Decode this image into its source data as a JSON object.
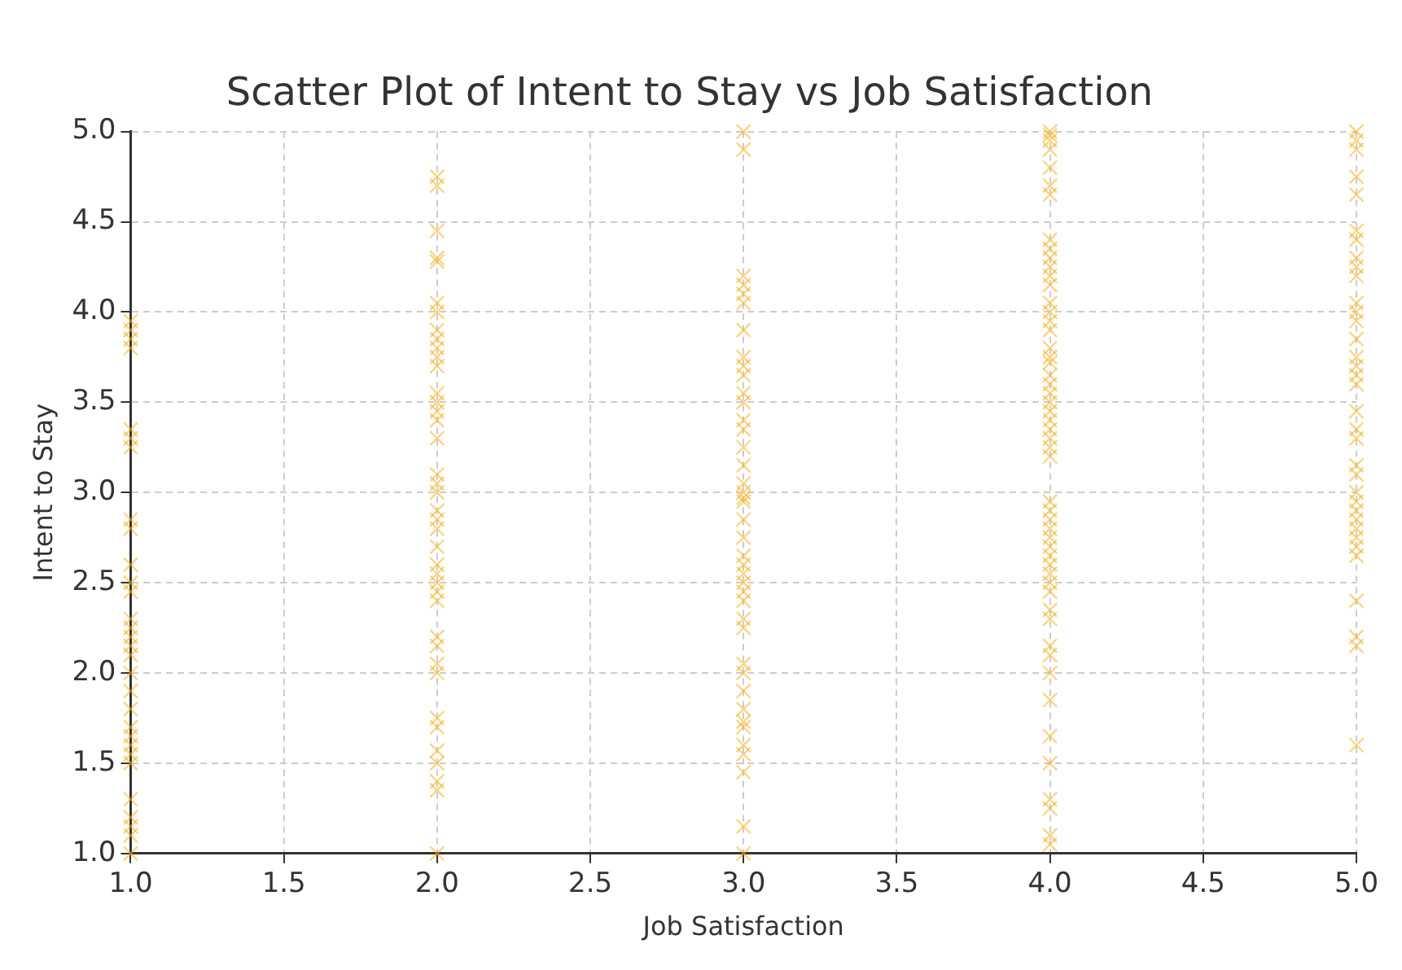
{
  "chart_data": {
    "type": "scatter",
    "title": "Scatter Plot of Intent to Stay vs Job Satisfaction",
    "xlabel": "Job Satisfaction",
    "ylabel": "Intent to Stay",
    "x": [
      1,
      1,
      1,
      1,
      1,
      1,
      1,
      1,
      1,
      1,
      1,
      1,
      1,
      1,
      1,
      1,
      1,
      1,
      1,
      1,
      1,
      1,
      1,
      1,
      1,
      1,
      1,
      1,
      1,
      1,
      2,
      2,
      2,
      2,
      2,
      2,
      2,
      2,
      2,
      2,
      2,
      2,
      2,
      2,
      2,
      2,
      2,
      2,
      2,
      2,
      2,
      2,
      2,
      2,
      2,
      2,
      2,
      2,
      2,
      2,
      2,
      2,
      2,
      2,
      2,
      2,
      2,
      2,
      2,
      2,
      3,
      3,
      3,
      3,
      3,
      3,
      3,
      3,
      3,
      3,
      3,
      3,
      3,
      3,
      3,
      3,
      3,
      3,
      3,
      3,
      3,
      3,
      3,
      3,
      3,
      3,
      3,
      3,
      3,
      3,
      3,
      3,
      3,
      3,
      3,
      3,
      3,
      3,
      3,
      3,
      3,
      4,
      4,
      4,
      4,
      4,
      4,
      4,
      4,
      4,
      4,
      4,
      4,
      4,
      4,
      4,
      4,
      4,
      4,
      4,
      4,
      4,
      4,
      4,
      4,
      4,
      4,
      4,
      4,
      4,
      4,
      4,
      4,
      4,
      4,
      4,
      4,
      4,
      4,
      4,
      4,
      4,
      4,
      4,
      4,
      4,
      4,
      4,
      4,
      4,
      4,
      4,
      4,
      4,
      5,
      5,
      5,
      5,
      5,
      5,
      5,
      5,
      5,
      5,
      5,
      5,
      5,
      5,
      5,
      5,
      5,
      5,
      5,
      5,
      5,
      5,
      5,
      5,
      5,
      5,
      5,
      5,
      5,
      5,
      5,
      5,
      5,
      5,
      5
    ],
    "values": [
      3.95,
      3.9,
      3.85,
      3.8,
      3.35,
      3.3,
      3.25,
      2.85,
      2.8,
      2.6,
      2.5,
      2.45,
      2.3,
      2.25,
      2.2,
      2.15,
      2.1,
      2.0,
      1.9,
      1.8,
      1.7,
      1.65,
      1.6,
      1.55,
      1.5,
      1.3,
      1.2,
      1.15,
      1.1,
      1.0,
      4.75,
      4.7,
      4.45,
      4.3,
      4.28,
      4.05,
      4.0,
      3.9,
      3.85,
      3.8,
      3.75,
      3.7,
      3.55,
      3.5,
      3.45,
      3.4,
      3.3,
      3.1,
      3.05,
      3.0,
      2.9,
      2.85,
      2.8,
      2.7,
      2.6,
      2.55,
      2.5,
      2.45,
      2.4,
      2.2,
      2.15,
      2.05,
      2.0,
      1.75,
      1.7,
      1.57,
      1.5,
      1.4,
      1.35,
      1.0,
      5.0,
      4.9,
      4.2,
      4.15,
      4.1,
      4.05,
      3.9,
      3.75,
      3.7,
      3.65,
      3.55,
      3.5,
      3.4,
      3.35,
      3.25,
      3.15,
      3.05,
      3.0,
      2.97,
      2.95,
      2.85,
      2.75,
      2.65,
      2.6,
      2.55,
      2.5,
      2.45,
      2.4,
      2.3,
      2.25,
      2.05,
      2.0,
      1.9,
      1.8,
      1.73,
      1.7,
      1.6,
      1.55,
      1.45,
      1.15,
      1.0,
      5.0,
      4.98,
      4.95,
      4.9,
      4.8,
      4.7,
      4.65,
      4.4,
      4.35,
      4.3,
      4.25,
      4.2,
      4.15,
      4.05,
      4.0,
      3.95,
      3.9,
      3.8,
      3.75,
      3.72,
      3.65,
      3.6,
      3.55,
      3.5,
      3.45,
      3.4,
      3.35,
      3.3,
      3.25,
      3.2,
      2.95,
      2.9,
      2.85,
      2.8,
      2.75,
      2.7,
      2.65,
      2.6,
      2.55,
      2.5,
      2.45,
      2.35,
      2.3,
      2.15,
      2.1,
      2.0,
      1.85,
      1.65,
      1.5,
      1.3,
      1.25,
      1.1,
      1.05,
      5.0,
      4.95,
      4.9,
      4.75,
      4.65,
      4.45,
      4.4,
      4.3,
      4.25,
      4.2,
      4.05,
      4.0,
      3.95,
      3.85,
      3.75,
      3.7,
      3.65,
      3.6,
      3.45,
      3.35,
      3.3,
      3.15,
      3.1,
      3.0,
      2.95,
      2.9,
      2.85,
      2.8,
      2.75,
      2.7,
      2.65,
      2.4,
      2.2,
      2.15,
      1.6
    ],
    "color": "#f5b324",
    "marker": "cross",
    "grid": true,
    "legend": false,
    "xlim": [
      1,
      5
    ],
    "xticks": [
      {
        "value": 1,
        "label": "1.0"
      },
      {
        "value": 1.5,
        "label": "1.5"
      },
      {
        "value": 2,
        "label": "2.0"
      },
      {
        "value": 2.5,
        "label": "2.5"
      },
      {
        "value": 3,
        "label": "3.0"
      },
      {
        "value": 3.5,
        "label": "3.5"
      },
      {
        "value": 4,
        "label": "4.0"
      },
      {
        "value": 4.5,
        "label": "4.5"
      },
      {
        "value": 5,
        "label": "5.0"
      }
    ],
    "ylim": [
      1,
      5
    ],
    "yticks": [
      {
        "value": 1,
        "label": "1.0"
      },
      {
        "value": 1.5,
        "label": "1.5"
      },
      {
        "value": 2,
        "label": "2.0"
      },
      {
        "value": 2.5,
        "label": "2.5"
      },
      {
        "value": 3,
        "label": "3.0"
      },
      {
        "value": 3.5,
        "label": "3.5"
      },
      {
        "value": 4,
        "label": "4.0"
      },
      {
        "value": 4.5,
        "label": "4.5"
      },
      {
        "value": 5,
        "label": "5.0"
      }
    ]
  }
}
